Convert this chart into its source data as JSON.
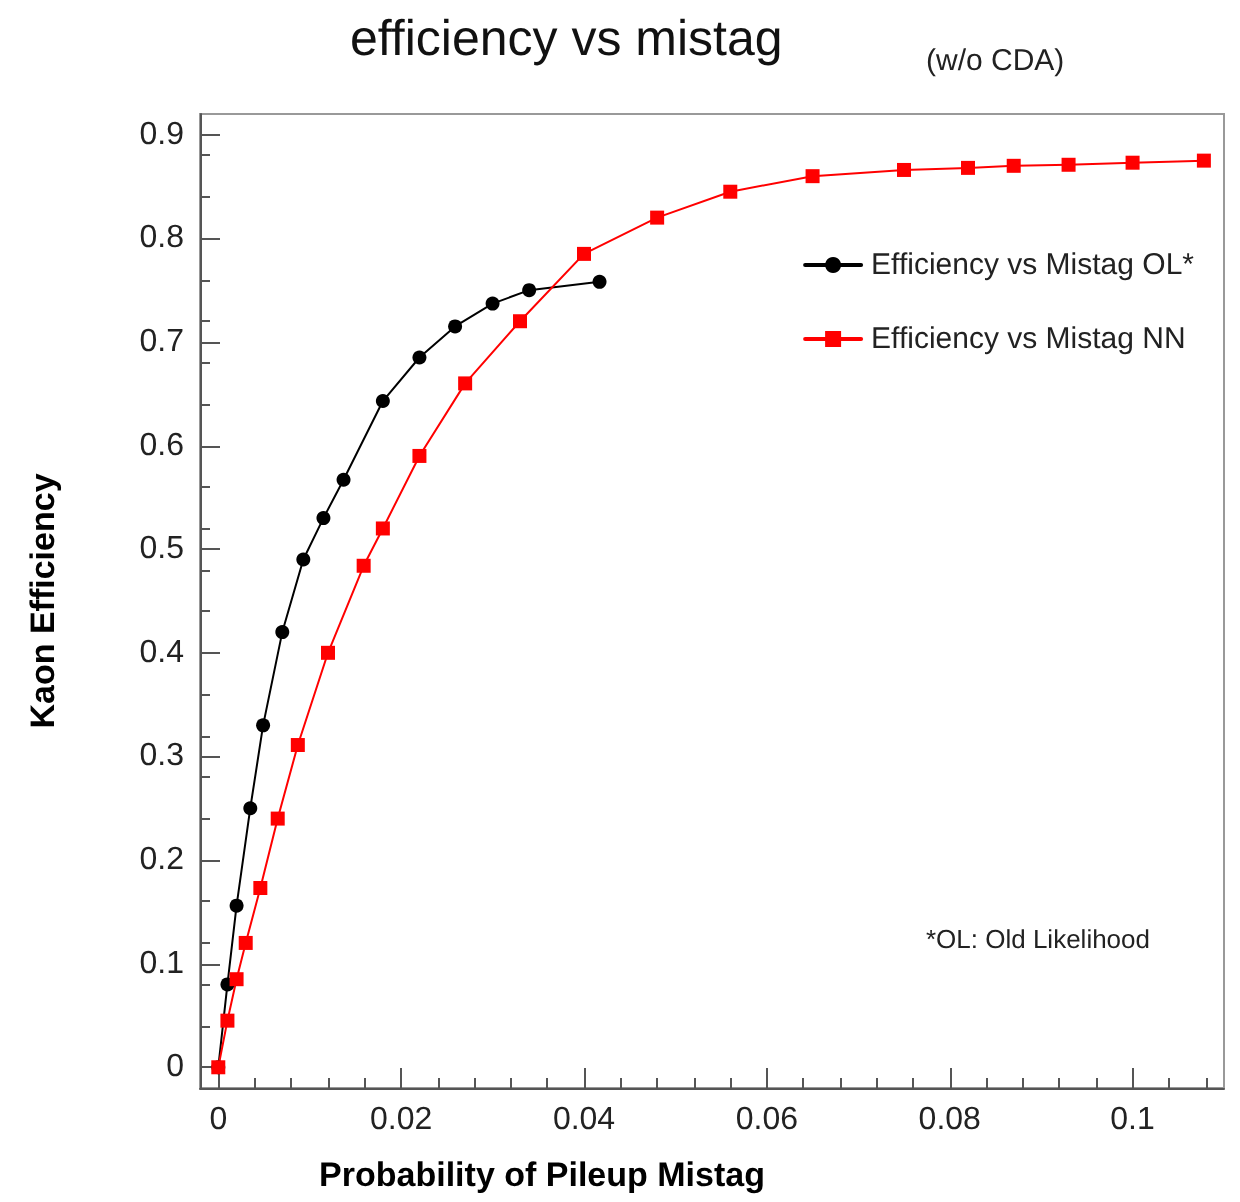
{
  "chart_data": {
    "type": "line",
    "title": "efficiency vs mistag",
    "subtitle": "(w/o CDA)",
    "xlabel": "Probability of Pileup Mistag",
    "ylabel": "Kaon Efficiency",
    "annotations": [
      "*OL: Old Likelihood"
    ],
    "xlim": [
      -0.002,
      0.11
    ],
    "xticks": [
      0,
      0.02,
      0.04,
      0.06,
      0.08,
      0.1
    ],
    "ylim": [
      -0.02,
      0.92
    ],
    "yticks": [
      0,
      0.1,
      0.2,
      0.3,
      0.4,
      0.5,
      0.6,
      0.7,
      0.8,
      0.9
    ],
    "grid": false,
    "legend": "top right",
    "line_style": "solid",
    "series": [
      {
        "name": "Efficiency vs Mistag OL*",
        "color": "#000000",
        "marker": "circle",
        "x": [
          0,
          0.001,
          0.002,
          0.0035,
          0.0049,
          0.007,
          0.0093,
          0.0115,
          0.0137,
          0.018,
          0.022,
          0.0259,
          0.03,
          0.034,
          0.0417
        ],
        "values": [
          0,
          0.08,
          0.156,
          0.25,
          0.33,
          0.42,
          0.49,
          0.53,
          0.567,
          0.643,
          0.685,
          0.715,
          0.737,
          0.75,
          0.758
        ]
      },
      {
        "name": "Efficiency vs Mistag NN",
        "color": "#ff0000",
        "marker": "square",
        "x": [
          0,
          0.001,
          0.002,
          0.003,
          0.0046,
          0.0065,
          0.0087,
          0.012,
          0.0159,
          0.018,
          0.022,
          0.027,
          0.033,
          0.04,
          0.048,
          0.056,
          0.065,
          0.075,
          0.082,
          0.087,
          0.093,
          0.1,
          0.1078
        ],
        "values": [
          0,
          0.045,
          0.085,
          0.12,
          0.173,
          0.24,
          0.311,
          0.4,
          0.484,
          0.52,
          0.59,
          0.66,
          0.72,
          0.785,
          0.82,
          0.845,
          0.86,
          0.866,
          0.868,
          0.87,
          0.871,
          0.873,
          0.875
        ]
      }
    ]
  }
}
